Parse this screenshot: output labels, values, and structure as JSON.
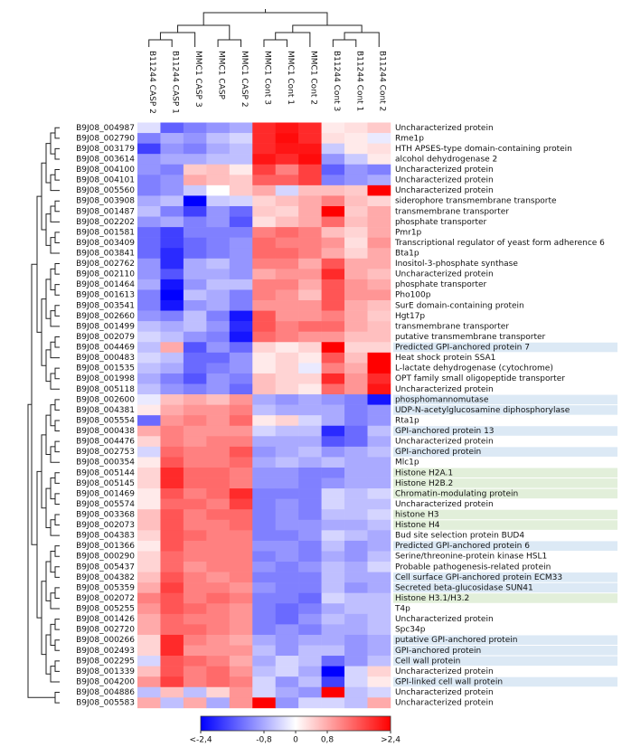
{
  "chart_data": {
    "type": "heatmap",
    "columns": [
      "B11244 CASP 2",
      "B11244 CASP 1",
      "MMC1 CASP 3",
      "MMC1 CASP",
      "MMC1 CASP 2",
      "MMC1 Cont 3",
      "MMC1 Cont 1",
      "MMC1 Cont 2",
      "B11244 Cont 3",
      "B11244 Cont 1",
      "B11244 Cont 2"
    ],
    "row_ids": [
      "B9J08_004987",
      "B9J08_002790",
      "B9J08_003179",
      "B9J08_003614",
      "B9J08_004100",
      "B9J08_004101",
      "B9J08_005560",
      "B9J08_003908",
      "B9J08_001487",
      "B9J08_002202",
      "B9J08_001581",
      "B9J08_003409",
      "B9J08_003841",
      "B9J08_002762",
      "B9J08_002110",
      "B9J08_001464",
      "B9J08_001613",
      "B9J08_003541",
      "B9J08_002660",
      "B9J08_001499",
      "B9J08_002079",
      "B9J08_004469",
      "B9J08_000483",
      "B9J08_001535",
      "B9J08_001998",
      "B9J08_005118",
      "B9J08_002600",
      "B9J08_004381",
      "B9J08_005554",
      "B9J08_000438",
      "B9J08_004476",
      "B9J08_002753",
      "B9J08_000354",
      "B9J08_005144",
      "B9J08_005145",
      "B9J08_001469",
      "B9J08_005574",
      "B9J08_003368",
      "B9J08_002073",
      "B9J08_004383",
      "B9J08_001366",
      "B9J08_000290",
      "B9J08_005437",
      "B9J08_004382",
      "B9J08_005359",
      "B9J08_002072",
      "B9J08_005255",
      "B9J08_001426",
      "B9J08_002720",
      "B9J08_000266",
      "B9J08_002493",
      "B9J08_002295",
      "B9J08_001339",
      "B9J08_004200",
      "B9J08_004886",
      "B9J08_005583"
    ],
    "row_labels": [
      "Uncharacterized protein",
      "Rme1p",
      "HTH APSES-type domain-containing protein",
      "alcohol dehydrogenase 2",
      "Uncharacterized protein",
      "Uncharacterized protein",
      "Uncharacterized protein",
      "siderophore transmembrane transporte",
      "transmembrane transporter",
      "phosphate transporter",
      "Pmr1p",
      "Transcriptional regulator of yeast form adherence 6",
      "Bta1p",
      "Inositol-3-phosphate synthase",
      "Uncharacterized protein",
      "phosphate transporter",
      "Pho100p",
      "SurE domain-containing protein",
      "Hgt17p",
      "transmembrane transporter",
      "putative transmembrane transporter",
      "Predicted GPI-anchored protein 7",
      "Heat shock protein SSA1",
      "L-lactate dehydrogenase (cytochrome)",
      "OPT family small oligopeptide transporter",
      "Uncharacterized protein",
      "phosphomannomutase",
      "UDP-N-acetylglucosamine diphosphorylase",
      "Rta1p",
      "GPI-anchored protein 13",
      "Uncharacterized protein",
      "GPI-anchored protein",
      "Mlc1p",
      "Histone H2A.1",
      "Histone H2B.2",
      "Chromatin-modulating protein",
      "Uncharacterized protein",
      "histone H3",
      "Histone H4",
      "Bud site selection protein BUD4",
      "Predicted GPI-anchored protein 6",
      "Serine/threonine-protein kinase HSL1",
      "Probable pathogenesis-related protein",
      "Cell surface GPI-anchored protein ECM33",
      "Secreted beta-glucosidase SUN41",
      "Histone H3.1/H3.2",
      "T4p",
      "Uncharacterized protein",
      "Spc34p",
      "putative GPI-anchored protein",
      "GPI-anchored protein",
      "Cell wall protein",
      "Uncharacterized protein",
      "GPI-linked cell wall protein",
      "Uncharacterized protein",
      "Uncharacterized protein"
    ],
    "label_highlights": [
      null,
      null,
      null,
      null,
      null,
      null,
      null,
      null,
      null,
      null,
      null,
      null,
      null,
      null,
      null,
      null,
      null,
      null,
      null,
      null,
      null,
      "#dce9f5",
      null,
      null,
      null,
      null,
      "#dce9f5",
      "#dce9f5",
      null,
      "#dce9f5",
      null,
      "#dce9f5",
      null,
      "#e2efda",
      "#e2efda",
      "#e2efda",
      null,
      "#e2efda",
      "#e2efda",
      null,
      "#dce9f5",
      null,
      null,
      "#dce9f5",
      "#dce9f5",
      "#e2efda",
      null,
      null,
      null,
      "#dce9f5",
      "#dce9f5",
      "#dce9f5",
      null,
      "#dce9f5",
      null,
      null
    ],
    "values": [
      [
        -0.3,
        -1.5,
        -1.2,
        -1.0,
        -0.8,
        2.0,
        2.2,
        2.0,
        0.2,
        0.3,
        0.5
      ],
      [
        -1.2,
        -0.8,
        -1.0,
        -0.6,
        -0.4,
        2.0,
        2.3,
        2.0,
        0.3,
        0.2,
        -0.2
      ],
      [
        -1.8,
        -1.0,
        -1.2,
        -0.8,
        -0.6,
        2.0,
        2.2,
        2.2,
        -0.5,
        0.2,
        0.3
      ],
      [
        -1.0,
        -0.8,
        -0.8,
        -0.6,
        -0.6,
        2.2,
        2.0,
        2.3,
        -1.0,
        -0.5,
        0.2
      ],
      [
        -1.0,
        -1.2,
        0.5,
        0.6,
        0.2,
        1.8,
        1.2,
        1.8,
        -1.5,
        -1.0,
        -1.2
      ],
      [
        -1.2,
        -1.0,
        0.8,
        0.6,
        0.5,
        1.5,
        1.5,
        1.8,
        -1.2,
        -1.0,
        -0.8
      ],
      [
        -1.2,
        -1.0,
        -0.5,
        0,
        0.5,
        0.8,
        -0.4,
        0.6,
        0.6,
        0.5,
        2.4
      ],
      [
        -0.8,
        -0.6,
        -2.4,
        -0.5,
        -0.4,
        0.4,
        0.6,
        0.8,
        1.2,
        0.6,
        0.4
      ],
      [
        -0.6,
        -1.2,
        -1.8,
        -1.0,
        -1.4,
        0.5,
        0.4,
        0.8,
        2.4,
        0.5,
        0.8
      ],
      [
        -1.0,
        -0.8,
        -1.2,
        -1.0,
        -1.6,
        0.3,
        0.6,
        0.8,
        1.4,
        0.6,
        0.8
      ],
      [
        -1.4,
        -1.8,
        -1.2,
        -1.2,
        -1.2,
        1.2,
        1.4,
        1.2,
        0.6,
        0.4,
        0.8
      ],
      [
        -1.4,
        -1.8,
        -1.4,
        -1.2,
        -1.0,
        1.4,
        1.2,
        1.2,
        1.0,
        0.3,
        1.0
      ],
      [
        -1.4,
        -2.0,
        -1.4,
        -1.2,
        -1.0,
        1.4,
        1.4,
        1.2,
        0.8,
        0.4,
        0.8
      ],
      [
        -1.0,
        -2.0,
        -0.8,
        -0.6,
        -1.0,
        1.2,
        1.2,
        0.8,
        1.6,
        0.8,
        0.8
      ],
      [
        -1.0,
        -1.6,
        -0.8,
        -0.8,
        -1.0,
        0.8,
        1.0,
        1.0,
        2.0,
        0.8,
        0.6
      ],
      [
        -0.8,
        -2.2,
        -1.0,
        -0.6,
        -0.6,
        1.2,
        1.2,
        0.8,
        1.6,
        1.0,
        0.8
      ],
      [
        -1.2,
        -2.4,
        -0.6,
        -0.8,
        -1.2,
        1.2,
        1.0,
        0.6,
        1.6,
        1.0,
        1.0
      ],
      [
        -1.2,
        -2.2,
        -1.0,
        -0.8,
        -1.2,
        1.0,
        1.0,
        1.0,
        1.6,
        0.8,
        0.6
      ],
      [
        -1.0,
        -1.2,
        -0.6,
        -1.2,
        -2.2,
        1.6,
        1.0,
        1.0,
        1.2,
        0.8,
        0.5
      ],
      [
        -0.6,
        -0.8,
        -0.6,
        -1.0,
        -2.0,
        1.6,
        1.2,
        1.4,
        1.4,
        0.8,
        0.6
      ],
      [
        -0.4,
        -0.6,
        -1.0,
        -1.2,
        -2.2,
        1.4,
        1.2,
        1.0,
        1.0,
        0.6,
        0.6
      ],
      [
        -0.6,
        0.8,
        -1.6,
        -1.0,
        -1.4,
        0.4,
        0.2,
        0.4,
        2.4,
        0.4,
        0.4
      ],
      [
        -0.4,
        -0.6,
        -1.4,
        -1.4,
        -1.0,
        0.2,
        0.4,
        0.2,
        1.6,
        0.6,
        2.4
      ],
      [
        -0.6,
        -0.8,
        -1.4,
        -1.2,
        -1.0,
        0.2,
        0.4,
        -0.2,
        1.2,
        0.8,
        2.4
      ],
      [
        -0.8,
        -1.2,
        -1.6,
        -1.0,
        -1.2,
        0.6,
        0.4,
        0.4,
        2.0,
        1.0,
        2.0
      ],
      [
        -0.6,
        -1.0,
        -1.2,
        -1.0,
        -1.4,
        0.6,
        0.4,
        0.2,
        1.4,
        1.0,
        2.2
      ],
      [
        -0.2,
        0.6,
        0.8,
        0.6,
        1.0,
        -0.8,
        -1.0,
        -0.8,
        -1.0,
        -1.2,
        -2.2
      ],
      [
        0.2,
        0.8,
        1.0,
        1.0,
        1.2,
        -0.6,
        -0.8,
        -0.8,
        -0.8,
        -1.2,
        -1.0
      ],
      [
        -1.4,
        1.0,
        1.2,
        1.0,
        1.4,
        0.2,
        0.4,
        -0.4,
        -0.8,
        -1.2,
        -1.0
      ],
      [
        0.8,
        1.2,
        1.0,
        1.0,
        1.0,
        -0.4,
        -0.6,
        -0.6,
        -2.0,
        -1.4,
        -0.6
      ],
      [
        0.4,
        1.2,
        1.0,
        1.2,
        1.2,
        -0.8,
        -0.8,
        -0.8,
        -1.6,
        -1.4,
        -0.8
      ],
      [
        -0.4,
        1.4,
        1.2,
        1.2,
        1.6,
        -1.0,
        -0.8,
        -0.6,
        -1.0,
        -0.8,
        -0.6
      ],
      [
        0.2,
        1.6,
        1.2,
        1.2,
        1.4,
        -0.8,
        -0.6,
        -0.8,
        -0.6,
        -0.8,
        -0.8
      ],
      [
        0.4,
        2.0,
        1.4,
        1.4,
        1.2,
        -1.0,
        -1.0,
        -1.2,
        -1.2,
        -0.8,
        -0.8
      ],
      [
        0.4,
        2.0,
        1.4,
        1.4,
        1.2,
        -1.0,
        -1.0,
        -1.2,
        -1.0,
        -0.8,
        -0.8
      ],
      [
        0.2,
        1.6,
        1.2,
        1.4,
        2.0,
        -1.2,
        -1.2,
        -1.2,
        -0.4,
        -0.6,
        -0.4
      ],
      [
        0.2,
        1.4,
        1.4,
        1.2,
        1.8,
        -1.2,
        -1.0,
        -1.2,
        -0.4,
        -0.6,
        -0.6
      ],
      [
        0.6,
        1.6,
        1.2,
        1.4,
        1.4,
        -1.2,
        -1.0,
        -1.2,
        -0.6,
        -0.6,
        -0.4
      ],
      [
        0.6,
        1.6,
        1.2,
        1.2,
        1.4,
        -1.2,
        -1.0,
        -1.0,
        -0.8,
        -0.8,
        -0.6
      ],
      [
        0.4,
        1.6,
        1.4,
        1.2,
        1.2,
        -1.2,
        -1.2,
        -1.0,
        -0.4,
        -0.6,
        -0.8
      ],
      [
        0.2,
        1.6,
        1.2,
        1.2,
        1.2,
        -1.0,
        -1.0,
        -1.2,
        -0.6,
        -1.0,
        -0.8
      ],
      [
        0.4,
        1.4,
        1.2,
        1.2,
        1.2,
        -1.2,
        -1.0,
        -1.2,
        -0.8,
        -1.0,
        -0.6
      ],
      [
        0.4,
        1.4,
        1.0,
        1.2,
        1.2,
        -1.0,
        -1.2,
        -1.0,
        -0.6,
        -0.8,
        -0.4
      ],
      [
        0.6,
        1.6,
        1.2,
        1.0,
        1.2,
        -1.2,
        -1.2,
        -1.2,
        -0.6,
        -0.8,
        -0.8
      ],
      [
        0.8,
        1.8,
        1.2,
        1.2,
        1.0,
        -1.0,
        -1.2,
        -1.2,
        -0.6,
        -1.0,
        -0.8
      ],
      [
        1.2,
        1.6,
        1.2,
        1.4,
        1.2,
        -1.2,
        -1.2,
        -1.4,
        -0.4,
        -0.6,
        -0.6
      ],
      [
        1.0,
        1.6,
        1.4,
        1.2,
        1.0,
        -1.2,
        -1.4,
        -1.2,
        -0.8,
        -0.6,
        -0.6
      ],
      [
        0.8,
        1.4,
        1.2,
        1.2,
        1.0,
        -1.2,
        -1.4,
        -1.0,
        -0.6,
        -0.8,
        -0.6
      ],
      [
        0.8,
        1.4,
        1.4,
        1.2,
        1.0,
        -1.2,
        -1.0,
        -1.2,
        -0.8,
        -0.8,
        -0.6
      ],
      [
        0.4,
        2.0,
        1.2,
        1.0,
        0.8,
        -0.8,
        -1.0,
        -0.8,
        -0.8,
        -1.0,
        -0.8
      ],
      [
        0.4,
        2.0,
        1.0,
        1.0,
        1.0,
        -0.6,
        -1.0,
        -0.6,
        -0.6,
        -1.0,
        -0.8
      ],
      [
        -0.4,
        1.6,
        1.4,
        1.2,
        0.8,
        -0.8,
        -0.4,
        -0.6,
        -1.4,
        -1.0,
        -0.6
      ],
      [
        0.6,
        1.6,
        1.2,
        1.4,
        1.0,
        -0.6,
        -0.4,
        -0.8,
        -2.4,
        -0.4,
        0.4
      ],
      [
        1.0,
        1.8,
        1.2,
        1.4,
        1.2,
        -0.4,
        -1.0,
        -0.6,
        -1.8,
        -0.4,
        0.2
      ],
      [
        -0.6,
        0.6,
        -0.6,
        0.4,
        1.0,
        -0.4,
        -0.8,
        -1.0,
        2.4,
        -0.6,
        -0.4
      ],
      [
        0.8,
        -0.6,
        0.8,
        -0.8,
        1.0,
        2.4,
        -1.0,
        -0.4,
        -0.4,
        -0.6,
        0.8
      ]
    ],
    "zlim": [
      -2.4,
      2.4
    ],
    "zticks": [
      {
        "value": -2.4,
        "label": "<-2,4"
      },
      {
        "value": -0.8,
        "label": "-0,8"
      },
      0,
      {
        "value": 0.8,
        "label": "0,8"
      },
      {
        "value": 2.4,
        "label": ">2,4"
      }
    ],
    "colorscale": [
      "#0000ff",
      "#ffffff",
      "#ff0000"
    ]
  }
}
